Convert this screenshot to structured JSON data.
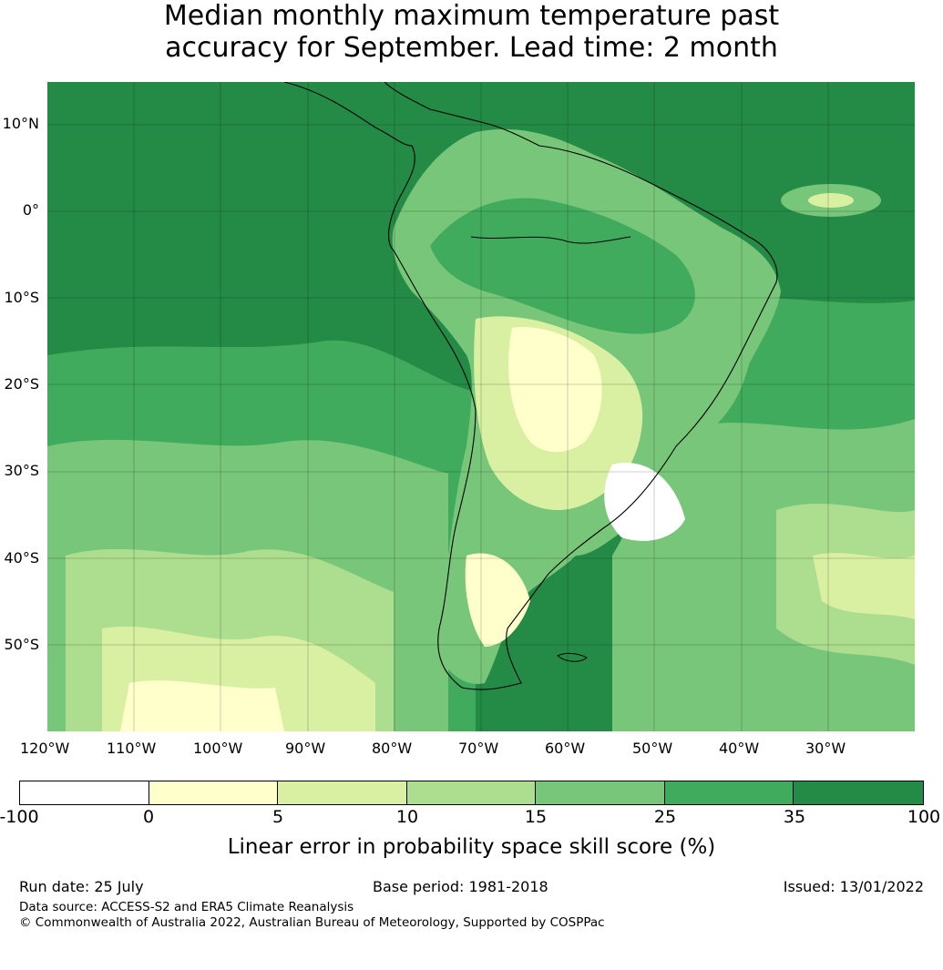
{
  "title": {
    "line1": "Median monthly maximum temperature past",
    "line2": "accuracy for September. Lead time: 2 month"
  },
  "map": {
    "lat_labels": [
      "10°N",
      "0°",
      "10°S",
      "20°S",
      "30°S",
      "40°S",
      "50°S"
    ],
    "lon_labels": [
      "120°W",
      "110°W",
      "100°W",
      "90°W",
      "80°W",
      "70°W",
      "60°W",
      "50°W",
      "40°W",
      "30°W"
    ],
    "extent": {
      "lon": [
        -120,
        -20
      ],
      "lat": [
        -60,
        15
      ]
    }
  },
  "colorbar": {
    "ticks": [
      "-100",
      "0",
      "5",
      "10",
      "15",
      "25",
      "35",
      "100"
    ],
    "colors": [
      "#ffffff",
      "#ffffcc",
      "#d9f0a3",
      "#addd8e",
      "#78c679",
      "#41ab5d",
      "#238b45"
    ],
    "label": "Linear error in probability space skill score (%)"
  },
  "footer": {
    "run_date": "Run date: 25 July",
    "base_period": "Base period: 1981-2018",
    "issued": "Issued: 13/01/2022",
    "source": "Data source: ACCESS-S2 and ERA5 Climate Reanalysis",
    "copyright": "© Commonwealth of Australia 2022, Australian Bureau of Meteorology, Supported by COSPPac"
  }
}
